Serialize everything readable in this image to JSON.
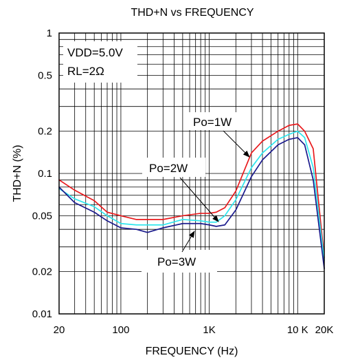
{
  "chart_data": {
    "type": "line",
    "title": "THD+N vs FREQUENCY",
    "xlabel": "FREQUENCY (Hz)",
    "ylabel": "THD+N (%)",
    "x_scale": "log",
    "y_scale": "log",
    "xlim": [
      20,
      20000
    ],
    "ylim": [
      0.01,
      1
    ],
    "grid": true,
    "x_tick_labels": [
      {
        "value": 20,
        "label": "20"
      },
      {
        "value": 100,
        "label": "100"
      },
      {
        "value": 1000,
        "label": "1K"
      },
      {
        "value": 10000,
        "label": "10 K"
      },
      {
        "value": 20000,
        "label": "20K"
      }
    ],
    "y_tick_labels": [
      {
        "value": 1,
        "label": "1"
      },
      {
        "value": 0.5,
        "label": "0.5"
      },
      {
        "value": 0.2,
        "label": "0.2"
      },
      {
        "value": 0.1,
        "label": "0.1"
      },
      {
        "value": 0.05,
        "label": "0.05"
      },
      {
        "value": 0.02,
        "label": "0.02"
      },
      {
        "value": 0.01,
        "label": "0.01"
      }
    ],
    "conditions": [
      "VDD=5.0V",
      "RL=2Ω"
    ],
    "series": [
      {
        "name": "Po=1W",
        "color": "#e8191c",
        "x": [
          20,
          30,
          50,
          70,
          100,
          150,
          200,
          300,
          500,
          800,
          1000,
          1200,
          1500,
          2000,
          3000,
          4000,
          6000,
          8000,
          10000,
          12000,
          15000,
          20000
        ],
        "y": [
          0.09,
          0.076,
          0.064,
          0.053,
          0.05,
          0.047,
          0.047,
          0.047,
          0.05,
          0.052,
          0.052,
          0.053,
          0.057,
          0.075,
          0.14,
          0.17,
          0.2,
          0.22,
          0.225,
          0.2,
          0.15,
          0.025
        ]
      },
      {
        "name": "Po=2W",
        "color": "#2ee6ee",
        "x": [
          20,
          30,
          50,
          70,
          100,
          150,
          200,
          300,
          500,
          800,
          1000,
          1200,
          1500,
          2000,
          3000,
          4000,
          6000,
          8000,
          10000,
          12000,
          15000,
          20000
        ],
        "y": [
          0.078,
          0.066,
          0.058,
          0.05,
          0.044,
          0.043,
          0.043,
          0.043,
          0.047,
          0.046,
          0.045,
          0.045,
          0.05,
          0.065,
          0.11,
          0.14,
          0.175,
          0.19,
          0.2,
          0.18,
          0.11,
          0.024
        ]
      },
      {
        "name": "Po=3W",
        "color": "#1a1a8c",
        "x": [
          20,
          30,
          50,
          70,
          100,
          150,
          200,
          300,
          500,
          800,
          1000,
          1200,
          1500,
          2000,
          3000,
          4000,
          6000,
          8000,
          10000,
          12000,
          15000,
          20000
        ],
        "y": [
          0.08,
          0.062,
          0.053,
          0.046,
          0.041,
          0.04,
          0.038,
          0.041,
          0.044,
          0.044,
          0.043,
          0.042,
          0.043,
          0.055,
          0.095,
          0.125,
          0.16,
          0.175,
          0.18,
          0.16,
          0.09,
          0.021
        ]
      }
    ],
    "annotations": [
      {
        "text": "Po=1W",
        "series": "Po=1W"
      },
      {
        "text": "Po=2W",
        "series": "Po=2W"
      },
      {
        "text": "Po=3W",
        "series": "Po=3W"
      }
    ]
  }
}
